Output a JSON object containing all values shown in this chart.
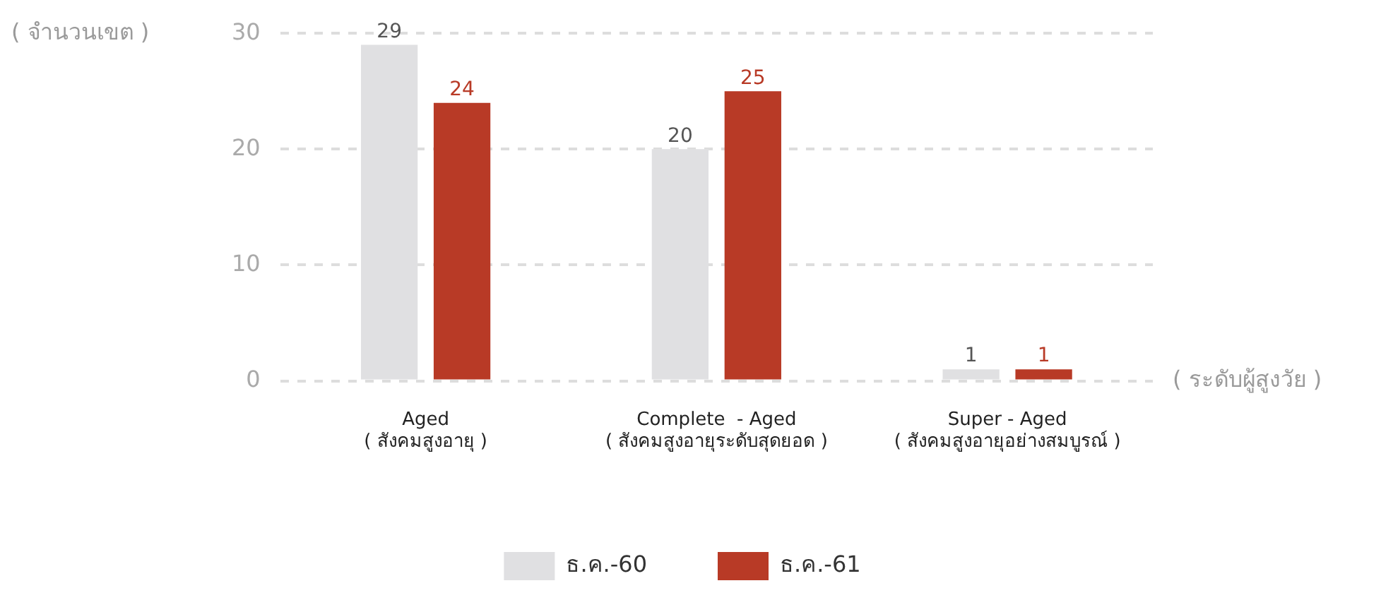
{
  "chart_data": {
    "type": "bar",
    "ylabel": "( จำนวนเขต )",
    "xlabel": "( ระดับผู้สูงวัย )",
    "categories": [
      "Aged\n( สังคมสูงอายุ )",
      "Complete  - Aged\n( สังคมสูงอายุระดับสุดยอด )",
      "Super - Aged\n( สังคมสูงอายุอย่างสมบูรณ์ )"
    ],
    "series": [
      {
        "name": "ธ.ค.-60",
        "color": "#e0e0e2",
        "values": [
          29,
          20,
          1
        ]
      },
      {
        "name": "ธ.ค.-61",
        "color": "#b83a26",
        "values": [
          24,
          25,
          1
        ]
      }
    ],
    "ylim": [
      0,
      30
    ],
    "yticks": [
      0,
      10,
      20,
      30
    ],
    "grid": "y",
    "legend": "bottom",
    "data_labels": true
  }
}
